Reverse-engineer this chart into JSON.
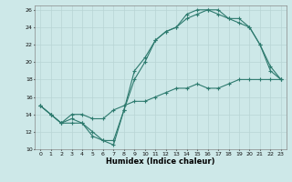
{
  "xlabel": "Humidex (Indice chaleur)",
  "bg_color": "#cde8e8",
  "grid_color": "#b8d4d4",
  "line_color": "#2d7a6e",
  "xlim": [
    -0.5,
    23.5
  ],
  "ylim": [
    10,
    26.5
  ],
  "yticks": [
    10,
    12,
    14,
    16,
    18,
    20,
    22,
    24,
    26
  ],
  "xticks": [
    0,
    1,
    2,
    3,
    4,
    5,
    6,
    7,
    8,
    9,
    10,
    11,
    12,
    13,
    14,
    15,
    16,
    17,
    18,
    19,
    20,
    21,
    22,
    23
  ],
  "line1_x": [
    0,
    1,
    2,
    3,
    4,
    5,
    6,
    7,
    8,
    9,
    10,
    11,
    12,
    13,
    14,
    15,
    16,
    17,
    18,
    19,
    20,
    21,
    22,
    23
  ],
  "line1_y": [
    15,
    14,
    13,
    13.5,
    13,
    12,
    11,
    10.5,
    14.5,
    18,
    20,
    22.5,
    23.5,
    24,
    25,
    25.5,
    26,
    26,
    25,
    25,
    24,
    22,
    19.5,
    18
  ],
  "line2_x": [
    0,
    1,
    2,
    3,
    4,
    5,
    6,
    7,
    8,
    9,
    10,
    11,
    12,
    13,
    14,
    15,
    16,
    17,
    18,
    19,
    20,
    21,
    22,
    23
  ],
  "line2_y": [
    15,
    14,
    13,
    13,
    13,
    11.5,
    11,
    11,
    14.5,
    19,
    20.5,
    22.5,
    23.5,
    24,
    25.5,
    26,
    26,
    25.5,
    25,
    24.5,
    24,
    22,
    19,
    18
  ],
  "line3_x": [
    0,
    1,
    2,
    3,
    4,
    5,
    6,
    7,
    8,
    9,
    10,
    11,
    12,
    13,
    14,
    15,
    16,
    17,
    18,
    19,
    20,
    21,
    22,
    23
  ],
  "line3_y": [
    15,
    14,
    13,
    14,
    14,
    13.5,
    13.5,
    14.5,
    15,
    15.5,
    15.5,
    16,
    16.5,
    17,
    17,
    17.5,
    17,
    17,
    17.5,
    18,
    18,
    18,
    18,
    18
  ]
}
